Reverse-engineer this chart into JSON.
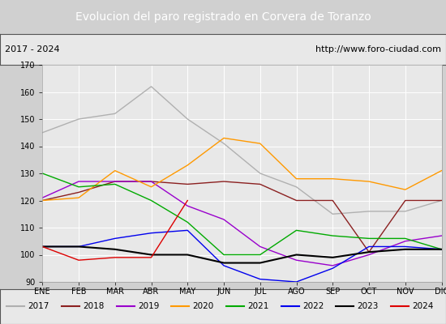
{
  "title": "Evolucion del paro registrado en Corvera de Toranzo",
  "subtitle_left": "2017 - 2024",
  "subtitle_right": "http://www.foro-ciudad.com",
  "xlabel_months": [
    "ENE",
    "FEB",
    "MAR",
    "ABR",
    "MAY",
    "JUN",
    "JUL",
    "AGO",
    "SEP",
    "OCT",
    "NOV",
    "DIC"
  ],
  "ylim": [
    90,
    170
  ],
  "yticks": [
    90,
    100,
    110,
    120,
    130,
    140,
    150,
    160,
    170
  ],
  "title_bg": "#4f7fc5",
  "title_color": "#ffffff",
  "plot_bg": "#e8e8e8",
  "series": {
    "2017": {
      "color": "#b0b0b0",
      "linewidth": 1.0,
      "linestyle": "-",
      "data": [
        145,
        150,
        152,
        162,
        150,
        141,
        130,
        125,
        115,
        116,
        116,
        120
      ]
    },
    "2018": {
      "color": "#8b2020",
      "linewidth": 1.0,
      "linestyle": "-",
      "data": [
        120,
        123,
        127,
        127,
        126,
        127,
        126,
        120,
        120,
        101,
        120,
        120
      ]
    },
    "2019": {
      "color": "#9900cc",
      "linewidth": 1.0,
      "linestyle": "-",
      "data": [
        121,
        127,
        127,
        127,
        118,
        113,
        103,
        98,
        96,
        100,
        105,
        107
      ]
    },
    "2020": {
      "color": "#ff9900",
      "linewidth": 1.0,
      "linestyle": "-",
      "data": [
        120,
        121,
        131,
        125,
        133,
        143,
        141,
        128,
        128,
        127,
        124,
        131
      ]
    },
    "2021": {
      "color": "#00aa00",
      "linewidth": 1.0,
      "linestyle": "-",
      "data": [
        130,
        125,
        126,
        120,
        112,
        100,
        100,
        109,
        107,
        106,
        106,
        102
      ]
    },
    "2022": {
      "color": "#0000ee",
      "linewidth": 1.0,
      "linestyle": "-",
      "data": [
        103,
        103,
        106,
        108,
        109,
        96,
        91,
        90,
        95,
        103,
        103,
        102
      ]
    },
    "2023": {
      "color": "#000000",
      "linewidth": 1.5,
      "linestyle": "-",
      "data": [
        103,
        103,
        102,
        100,
        100,
        97,
        97,
        100,
        99,
        101,
        102,
        102
      ]
    },
    "2024": {
      "color": "#dd0000",
      "linewidth": 1.0,
      "linestyle": "-",
      "data": [
        103,
        98,
        99,
        99,
        120,
        null,
        null,
        null,
        null,
        null,
        null,
        null
      ]
    }
  },
  "series_order": [
    "2017",
    "2018",
    "2019",
    "2020",
    "2021",
    "2022",
    "2023",
    "2024"
  ]
}
